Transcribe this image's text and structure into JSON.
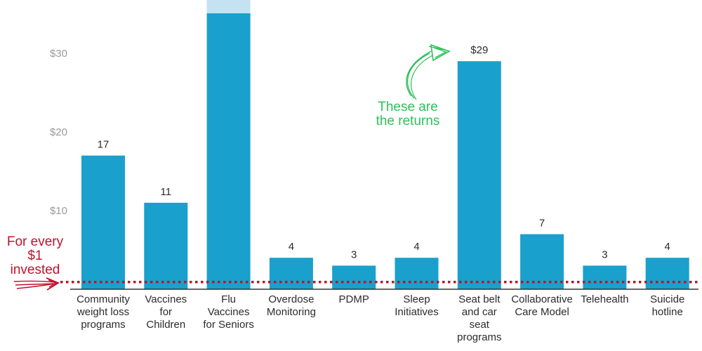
{
  "chart_data": {
    "type": "bar",
    "categories": [
      [
        "Community",
        "weight loss",
        "programs"
      ],
      [
        "Vaccines",
        "for",
        "Children"
      ],
      [
        "Flu",
        "Vaccines",
        "for Seniors"
      ],
      [
        "Overdose",
        "Monitoring"
      ],
      [
        "PDMP"
      ],
      [
        "Sleep",
        "Initiatives"
      ],
      [
        "Seat belt",
        "and car",
        "seat",
        "programs"
      ],
      [
        "Collaborative",
        "Care Model"
      ],
      [
        "Telehealth"
      ],
      [
        "Suicide",
        "hotline"
      ]
    ],
    "values": [
      17,
      11,
      35,
      4,
      3,
      4,
      29,
      7,
      3,
      4
    ],
    "data_labels": [
      "17",
      "11",
      "",
      "4",
      "3",
      "4",
      "$29",
      "7",
      "3",
      "4"
    ],
    "y_ticks": [
      {
        "value": 10,
        "label": "$10"
      },
      {
        "value": 20,
        "label": "$20"
      },
      {
        "value": 30,
        "label": "$30"
      }
    ],
    "ylim": [
      0,
      35
    ],
    "baseline_value": 1,
    "truncated_bar_index": 2,
    "grid": false,
    "title": "",
    "xlabel": "",
    "ylabel": ""
  },
  "annotations": {
    "investment": {
      "lines": [
        "For every",
        "$1",
        "invested"
      ],
      "color": "#c0122c"
    },
    "returns": {
      "lines": [
        "These are",
        "the returns"
      ],
      "color": "#2ec05a"
    }
  },
  "colors": {
    "bar": "#1aa0cc",
    "bar_truncated_tip": "#c4e2f2",
    "axis": "#333333",
    "tick_label": "#9a9a9a",
    "baseline_dots": "#b5172d"
  }
}
